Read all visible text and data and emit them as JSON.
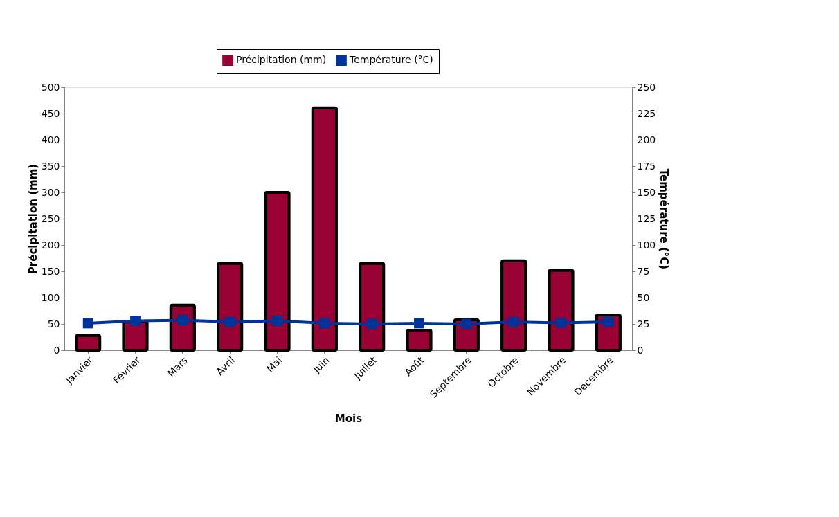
{
  "chart_data": {
    "type": "bar",
    "xlabel": "Mois",
    "ylabel": "Précipitation (mm)",
    "y2label": "Température (°C)",
    "categories": [
      "Janvier",
      "Février",
      "Mars",
      "Avril",
      "Mai",
      "Juin",
      "Juillet",
      "Août",
      "Septembre",
      "Octobre",
      "Novembre",
      "Décembre"
    ],
    "series": [
      {
        "name": "Précipitation (mm)",
        "color": "#990033",
        "values": [
          28,
          55,
          86,
          165,
          300,
          461,
          165,
          38,
          58,
          170,
          152,
          67
        ]
      },
      {
        "name": "Température (°C)",
        "type": "line",
        "axis": "y2",
        "color": "#003399",
        "marker": "square",
        "values": [
          25.7,
          28,
          28.6,
          27,
          28,
          25.7,
          25,
          25.7,
          25,
          27,
          26,
          27
        ]
      }
    ],
    "ylim": [
      0,
      500
    ],
    "yticks": [
      0,
      50,
      100,
      150,
      200,
      250,
      300,
      350,
      400,
      450,
      500
    ],
    "y2lim": [
      0,
      250
    ],
    "y2ticks": [
      0,
      25,
      50,
      75,
      100,
      125,
      150,
      175,
      200,
      225,
      250
    ],
    "grid": false,
    "legend": "top"
  }
}
